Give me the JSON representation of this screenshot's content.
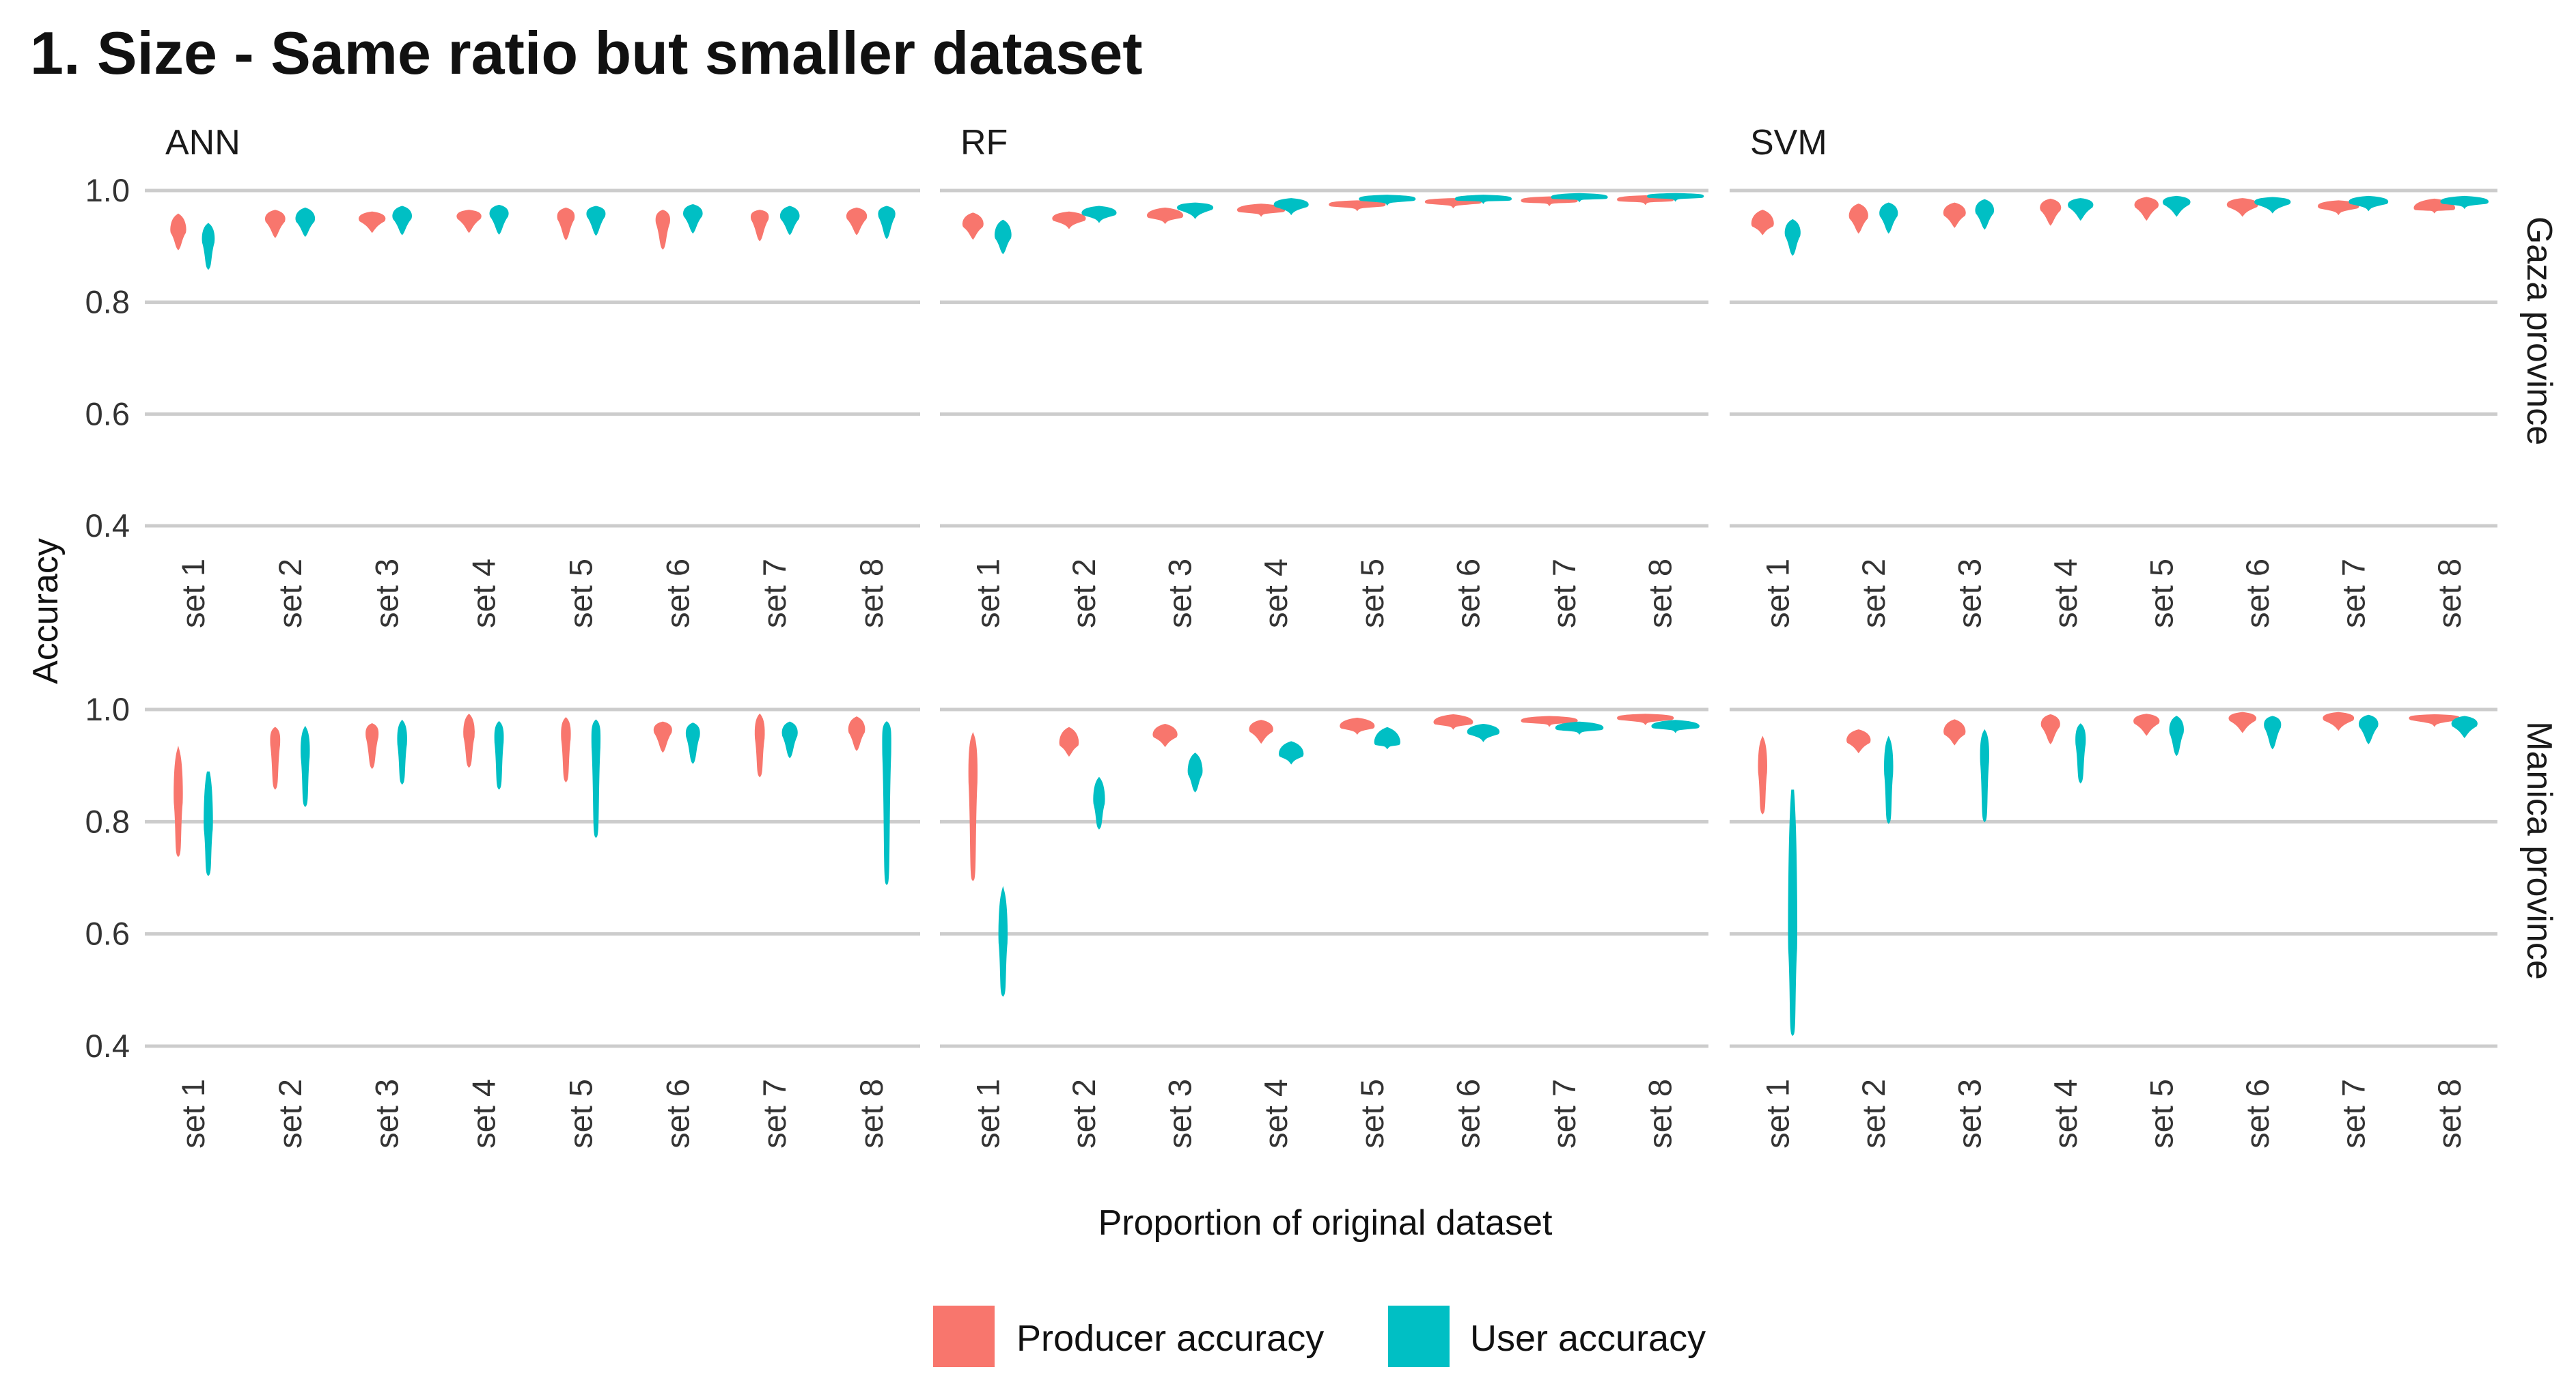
{
  "chart_data": {
    "type": "violin",
    "title": "1. Size - Same ratio but smaller dataset",
    "xlabel": "Proportion of original dataset",
    "ylabel": "Accuracy",
    "ylim": [
      0.4,
      1.0
    ],
    "yticks": [
      "0.4",
      "0.6",
      "0.8",
      "1.0"
    ],
    "grid": true,
    "legend_position": "bottom",
    "categories": [
      "set 1",
      "set 2",
      "set 3",
      "set 4",
      "set 5",
      "set 6",
      "set 7",
      "set 8"
    ],
    "series_names": [
      "Producer accuracy",
      "User accuracy"
    ],
    "colors": {
      "Producer accuracy": "#F8766D",
      "User accuracy": "#00BFC4"
    },
    "columns": [
      "ANN",
      "RF",
      "SVM"
    ],
    "rows": [
      "Gaza province",
      "Manica province"
    ],
    "value_format": "each violin given as [min, densest value, max]",
    "panels": [
      {
        "row": "Gaza province",
        "col": "ANN",
        "producer": [
          [
            0.897,
            0.93,
            0.956
          ],
          [
            0.919,
            0.95,
            0.963
          ],
          [
            0.928,
            0.95,
            0.96
          ],
          [
            0.928,
            0.955,
            0.963
          ],
          [
            0.915,
            0.955,
            0.967
          ],
          [
            0.898,
            0.95,
            0.963
          ],
          [
            0.913,
            0.955,
            0.963
          ],
          [
            0.924,
            0.955,
            0.967
          ]
        ],
        "user": [
          [
            0.862,
            0.915,
            0.939
          ],
          [
            0.921,
            0.95,
            0.967
          ],
          [
            0.924,
            0.955,
            0.97
          ],
          [
            0.925,
            0.96,
            0.972
          ],
          [
            0.923,
            0.96,
            0.97
          ],
          [
            0.927,
            0.96,
            0.973
          ],
          [
            0.924,
            0.955,
            0.97
          ],
          [
            0.917,
            0.96,
            0.97
          ]
        ]
      },
      {
        "row": "Gaza province",
        "col": "RF",
        "producer": [
          [
            0.916,
            0.94,
            0.958
          ],
          [
            0.935,
            0.95,
            0.96
          ],
          [
            0.944,
            0.955,
            0.967
          ],
          [
            0.957,
            0.965,
            0.974
          ],
          [
            0.967,
            0.975,
            0.98
          ],
          [
            0.972,
            0.98,
            0.984
          ],
          [
            0.976,
            0.982,
            0.987
          ],
          [
            0.978,
            0.984,
            0.989
          ]
        ],
        "user": [
          [
            0.89,
            0.92,
            0.945
          ],
          [
            0.946,
            0.96,
            0.97
          ],
          [
            0.953,
            0.97,
            0.976
          ],
          [
            0.96,
            0.975,
            0.984
          ],
          [
            0.977,
            0.985,
            0.99
          ],
          [
            0.98,
            0.985,
            0.99
          ],
          [
            0.983,
            0.988,
            0.993
          ],
          [
            0.984,
            0.99,
            0.993
          ]
        ]
      },
      {
        "row": "Gaza province",
        "col": "SVM",
        "producer": [
          [
            0.924,
            0.94,
            0.963
          ],
          [
            0.927,
            0.955,
            0.974
          ],
          [
            0.937,
            0.96,
            0.976
          ],
          [
            0.941,
            0.97,
            0.983
          ],
          [
            0.95,
            0.975,
            0.986
          ],
          [
            0.957,
            0.975,
            0.984
          ],
          [
            0.96,
            0.972,
            0.98
          ],
          [
            0.963,
            0.968,
            0.983
          ]
        ],
        "user": [
          [
            0.887,
            0.925,
            0.946
          ],
          [
            0.927,
            0.96,
            0.976
          ],
          [
            0.934,
            0.965,
            0.982
          ],
          [
            0.95,
            0.975,
            0.984
          ],
          [
            0.957,
            0.98,
            0.988
          ],
          [
            0.963,
            0.98,
            0.986
          ],
          [
            0.967,
            0.98,
            0.988
          ],
          [
            0.971,
            0.98,
            0.988
          ]
        ]
      },
      {
        "row": "Manica province",
        "col": "ANN",
        "producer": [
          [
            0.741,
            0.85,
            0.926
          ],
          [
            0.861,
            0.95,
            0.966
          ],
          [
            0.898,
            0.96,
            0.973
          ],
          [
            0.9,
            0.96,
            0.989
          ],
          [
            0.874,
            0.96,
            0.983
          ],
          [
            0.927,
            0.965,
            0.976
          ],
          [
            0.883,
            0.96,
            0.989
          ],
          [
            0.93,
            0.965,
            0.985
          ]
        ],
        "user": [
          [
            0.707,
            0.8,
            0.889
          ],
          [
            0.83,
            0.93,
            0.966
          ],
          [
            0.87,
            0.95,
            0.978
          ],
          [
            0.861,
            0.955,
            0.976
          ],
          [
            0.775,
            0.96,
            0.979
          ],
          [
            0.907,
            0.96,
            0.974
          ],
          [
            0.917,
            0.96,
            0.976
          ],
          [
            0.691,
            0.96,
            0.976
          ]
        ]
      },
      {
        "row": "Manica province",
        "col": "RF",
        "producer": [
          [
            0.698,
            0.9,
            0.953
          ],
          [
            0.92,
            0.94,
            0.966
          ],
          [
            0.937,
            0.955,
            0.972
          ],
          [
            0.943,
            0.965,
            0.979
          ],
          [
            0.959,
            0.97,
            0.983
          ],
          [
            0.968,
            0.977,
            0.989
          ],
          [
            0.973,
            0.98,
            0.986
          ],
          [
            0.976,
            0.985,
            0.99
          ]
        ],
        "user": [
          [
            0.492,
            0.6,
            0.676
          ],
          [
            0.79,
            0.84,
            0.876
          ],
          [
            0.856,
            0.89,
            0.92
          ],
          [
            0.906,
            0.92,
            0.941
          ],
          [
            0.933,
            0.94,
            0.966
          ],
          [
            0.946,
            0.96,
            0.972
          ],
          [
            0.959,
            0.967,
            0.976
          ],
          [
            0.962,
            0.97,
            0.979
          ]
        ]
      },
      {
        "row": "Manica province",
        "col": "SVM",
        "producer": [
          [
            0.817,
            0.9,
            0.947
          ],
          [
            0.926,
            0.945,
            0.962
          ],
          [
            0.94,
            0.96,
            0.98
          ],
          [
            0.942,
            0.975,
            0.989
          ],
          [
            0.957,
            0.98,
            0.99
          ],
          [
            0.962,
            0.985,
            0.993
          ],
          [
            0.966,
            0.985,
            0.993
          ],
          [
            0.973,
            0.985,
            0.989
          ]
        ],
        "user": [
          [
            0.422,
            0.6,
            0.857
          ],
          [
            0.8,
            0.9,
            0.947
          ],
          [
            0.803,
            0.925,
            0.96
          ],
          [
            0.872,
            0.95,
            0.972
          ],
          [
            0.921,
            0.965,
            0.986
          ],
          [
            0.933,
            0.975,
            0.986
          ],
          [
            0.942,
            0.975,
            0.988
          ],
          [
            0.953,
            0.975,
            0.986
          ]
        ]
      }
    ]
  }
}
